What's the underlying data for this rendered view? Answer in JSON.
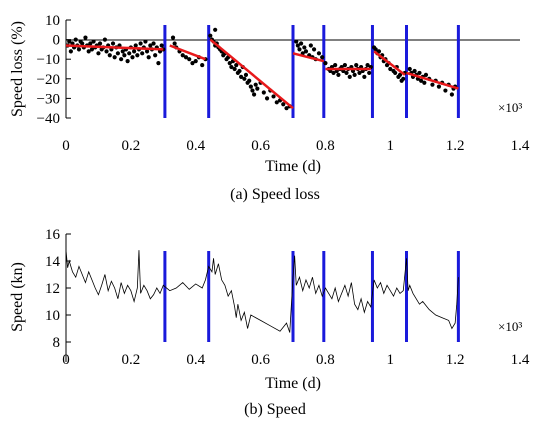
{
  "chart_data": [
    {
      "type": "scatter",
      "caption": "(a) Speed loss",
      "xlabel": "Time (d)",
      "ylabel": "Speed loss (%)",
      "x_multiplier": "×10³",
      "xlim": [
        0,
        1.4
      ],
      "ylim": [
        -40,
        10
      ],
      "xticks": [
        0,
        0.2,
        0.4,
        0.6,
        0.8,
        1.0,
        1.2,
        1.4
      ],
      "xtick_labels": [
        "0",
        "0.2",
        "0.4",
        "0.6",
        "0.8",
        "1",
        "1.2",
        "1.4"
      ],
      "yticks": [
        10,
        0,
        -10,
        -20,
        -30,
        -40
      ],
      "ytick_labels": [
        "10",
        "0",
        "−10",
        "−20",
        "−30",
        "−40"
      ],
      "scatter_color": "#000000",
      "trend_color": "#e8191b",
      "divider_color": "#1a1adb",
      "dividers": [
        0.305,
        0.44,
        0.7,
        0.795,
        0.945,
        1.05,
        1.21
      ],
      "points": [
        [
          0.005,
          -3
        ],
        [
          0.01,
          -1
        ],
        [
          0.015,
          -6
        ],
        [
          0.02,
          -2
        ],
        [
          0.025,
          -4
        ],
        [
          0.03,
          0
        ],
        [
          0.035,
          -3
        ],
        [
          0.04,
          -5
        ],
        [
          0.045,
          -1
        ],
        [
          0.05,
          -2
        ],
        [
          0.055,
          -4
        ],
        [
          0.06,
          1
        ],
        [
          0.065,
          -3
        ],
        [
          0.07,
          -6
        ],
        [
          0.075,
          -2
        ],
        [
          0.08,
          -5
        ],
        [
          0.085,
          -1
        ],
        [
          0.09,
          -4
        ],
        [
          0.095,
          -3
        ],
        [
          0.1,
          -7
        ],
        [
          0.105,
          -2
        ],
        [
          0.11,
          -5
        ],
        [
          0.115,
          -4
        ],
        [
          0.12,
          0
        ],
        [
          0.125,
          -6
        ],
        [
          0.13,
          -3
        ],
        [
          0.135,
          -8
        ],
        [
          0.14,
          -5
        ],
        [
          0.145,
          -2
        ],
        [
          0.15,
          -9
        ],
        [
          0.155,
          -4
        ],
        [
          0.16,
          -7
        ],
        [
          0.165,
          -3
        ],
        [
          0.17,
          -10
        ],
        [
          0.175,
          -6
        ],
        [
          0.18,
          -8
        ],
        [
          0.185,
          -5
        ],
        [
          0.19,
          -11
        ],
        [
          0.195,
          -7
        ],
        [
          0.2,
          -4
        ],
        [
          0.205,
          -9
        ],
        [
          0.21,
          -6
        ],
        [
          0.215,
          -3
        ],
        [
          0.22,
          -8
        ],
        [
          0.225,
          -5
        ],
        [
          0.23,
          -2
        ],
        [
          0.235,
          -7
        ],
        [
          0.24,
          -4
        ],
        [
          0.245,
          -1
        ],
        [
          0.25,
          -6
        ],
        [
          0.255,
          -9
        ],
        [
          0.26,
          -3
        ],
        [
          0.265,
          -5
        ],
        [
          0.27,
          -2
        ],
        [
          0.275,
          -8
        ],
        [
          0.28,
          -4
        ],
        [
          0.285,
          -12
        ],
        [
          0.29,
          -6
        ],
        [
          0.295,
          -3
        ],
        [
          0.3,
          -5
        ],
        [
          0.33,
          1
        ],
        [
          0.335,
          -2
        ],
        [
          0.34,
          -4
        ],
        [
          0.35,
          -6
        ],
        [
          0.36,
          -8
        ],
        [
          0.37,
          -9
        ],
        [
          0.38,
          -10
        ],
        [
          0.39,
          -12
        ],
        [
          0.4,
          -11
        ],
        [
          0.41,
          -9
        ],
        [
          0.42,
          -13
        ],
        [
          0.43,
          -10
        ],
        [
          0.445,
          2
        ],
        [
          0.45,
          0
        ],
        [
          0.455,
          -1
        ],
        [
          0.46,
          -3
        ],
        [
          0.465,
          -2
        ],
        [
          0.47,
          -4
        ],
        [
          0.475,
          -5
        ],
        [
          0.48,
          -6
        ],
        [
          0.485,
          -8
        ],
        [
          0.49,
          -7
        ],
        [
          0.495,
          -10
        ],
        [
          0.5,
          -9
        ],
        [
          0.505,
          -12
        ],
        [
          0.51,
          -14
        ],
        [
          0.515,
          -11
        ],
        [
          0.52,
          -15
        ],
        [
          0.525,
          -13
        ],
        [
          0.53,
          -17
        ],
        [
          0.535,
          -16
        ],
        [
          0.54,
          -19
        ],
        [
          0.545,
          -14
        ],
        [
          0.55,
          -20
        ],
        [
          0.555,
          -18
        ],
        [
          0.56,
          -22
        ],
        [
          0.565,
          -21
        ],
        [
          0.57,
          -24
        ],
        [
          0.575,
          -26
        ],
        [
          0.58,
          -28
        ],
        [
          0.585,
          -23
        ],
        [
          0.59,
          -25
        ],
        [
          0.6,
          -22
        ],
        [
          0.61,
          -27
        ],
        [
          0.62,
          -30
        ],
        [
          0.63,
          -26
        ],
        [
          0.64,
          -29
        ],
        [
          0.65,
          -32
        ],
        [
          0.66,
          -31
        ],
        [
          0.67,
          -33
        ],
        [
          0.68,
          -35
        ],
        [
          0.69,
          -34
        ],
        [
          0.46,
          5
        ],
        [
          0.71,
          -1
        ],
        [
          0.715,
          -3
        ],
        [
          0.72,
          -5
        ],
        [
          0.725,
          -2
        ],
        [
          0.73,
          -7
        ],
        [
          0.735,
          -4
        ],
        [
          0.74,
          -6
        ],
        [
          0.75,
          -8
        ],
        [
          0.755,
          -3
        ],
        [
          0.76,
          -9
        ],
        [
          0.765,
          -5
        ],
        [
          0.77,
          -10
        ],
        [
          0.78,
          -7
        ],
        [
          0.79,
          -9
        ],
        [
          0.8,
          -12
        ],
        [
          0.81,
          -15
        ],
        [
          0.815,
          -16
        ],
        [
          0.82,
          -14
        ],
        [
          0.825,
          -17
        ],
        [
          0.83,
          -13
        ],
        [
          0.835,
          -16
        ],
        [
          0.84,
          -18
        ],
        [
          0.845,
          -15
        ],
        [
          0.85,
          -14
        ],
        [
          0.855,
          -16
        ],
        [
          0.86,
          -13
        ],
        [
          0.865,
          -17
        ],
        [
          0.87,
          -15
        ],
        [
          0.875,
          -19
        ],
        [
          0.88,
          -14
        ],
        [
          0.885,
          -16
        ],
        [
          0.89,
          -18
        ],
        [
          0.895,
          -13
        ],
        [
          0.9,
          -15
        ],
        [
          0.905,
          -17
        ],
        [
          0.91,
          -14
        ],
        [
          0.915,
          -16
        ],
        [
          0.92,
          -19
        ],
        [
          0.925,
          -15
        ],
        [
          0.93,
          -13
        ],
        [
          0.935,
          -17
        ],
        [
          0.94,
          -14
        ],
        [
          0.95,
          -4
        ],
        [
          0.955,
          -5
        ],
        [
          0.96,
          -7
        ],
        [
          0.965,
          -6
        ],
        [
          0.97,
          -9
        ],
        [
          0.975,
          -8
        ],
        [
          0.98,
          -11
        ],
        [
          0.985,
          -10
        ],
        [
          0.99,
          -13
        ],
        [
          0.995,
          -12
        ],
        [
          1.0,
          -15
        ],
        [
          1.01,
          -16
        ],
        [
          1.015,
          -17
        ],
        [
          1.02,
          -14
        ],
        [
          1.025,
          -19
        ],
        [
          1.03,
          -18
        ],
        [
          1.035,
          -21
        ],
        [
          1.04,
          -20
        ],
        [
          1.045,
          -17
        ],
        [
          1.06,
          -15
        ],
        [
          1.065,
          -17
        ],
        [
          1.07,
          -19
        ],
        [
          1.075,
          -16
        ],
        [
          1.08,
          -18
        ],
        [
          1.085,
          -20
        ],
        [
          1.09,
          -17
        ],
        [
          1.095,
          -21
        ],
        [
          1.1,
          -19
        ],
        [
          1.105,
          -22
        ],
        [
          1.11,
          -18
        ],
        [
          1.12,
          -20
        ],
        [
          1.13,
          -23
        ],
        [
          1.14,
          -21
        ],
        [
          1.15,
          -24
        ],
        [
          1.16,
          -22
        ],
        [
          1.17,
          -26
        ],
        [
          1.18,
          -23
        ],
        [
          1.19,
          -28
        ],
        [
          1.195,
          -25
        ],
        [
          1.2,
          -24
        ]
      ],
      "trend_segments": [
        [
          [
            0.0,
            -3
          ],
          [
            0.3,
            -5
          ]
        ],
        [
          [
            0.32,
            -3
          ],
          [
            0.43,
            -10
          ]
        ],
        [
          [
            0.445,
            0
          ],
          [
            0.7,
            -35
          ]
        ],
        [
          [
            0.7,
            -7
          ],
          [
            0.795,
            -11
          ]
        ],
        [
          [
            0.8,
            -15
          ],
          [
            0.94,
            -15
          ]
        ],
        [
          [
            0.95,
            -6
          ],
          [
            1.045,
            -18
          ]
        ],
        [
          [
            1.05,
            -17
          ],
          [
            1.21,
            -25
          ]
        ]
      ]
    },
    {
      "type": "line",
      "caption": "(b) Speed",
      "xlabel": "Time (d)",
      "ylabel": "Speed (kn)",
      "x_multiplier": "×10³",
      "xlim": [
        0,
        1.4
      ],
      "ylim": [
        8,
        16
      ],
      "xticks": [
        0,
        0.2,
        0.4,
        0.6,
        0.8,
        1.0,
        1.2,
        1.4
      ],
      "xtick_labels": [
        "0",
        "0.2",
        "0.4",
        "0.6",
        "0.8",
        "1",
        "1.2",
        "1.4"
      ],
      "yticks": [
        16,
        14,
        12,
        10,
        8
      ],
      "ytick_labels": [
        "16",
        "14",
        "12",
        "10",
        "8"
      ],
      "line_color": "#000000",
      "divider_color": "#1a1adb",
      "dividers": [
        0.305,
        0.44,
        0.7,
        0.795,
        0.945,
        1.05,
        1.21
      ],
      "x": [
        0.0,
        0.005,
        0.01,
        0.02,
        0.03,
        0.04,
        0.05,
        0.06,
        0.07,
        0.08,
        0.09,
        0.1,
        0.11,
        0.12,
        0.13,
        0.14,
        0.15,
        0.16,
        0.17,
        0.18,
        0.19,
        0.2,
        0.21,
        0.22,
        0.225,
        0.23,
        0.24,
        0.25,
        0.26,
        0.27,
        0.28,
        0.29,
        0.3,
        0.32,
        0.34,
        0.36,
        0.38,
        0.4,
        0.42,
        0.43,
        0.44,
        0.45,
        0.455,
        0.46,
        0.47,
        0.48,
        0.49,
        0.5,
        0.51,
        0.52,
        0.525,
        0.53,
        0.54,
        0.55,
        0.56,
        0.57,
        0.6,
        0.63,
        0.66,
        0.68,
        0.69,
        0.7,
        0.705,
        0.71,
        0.72,
        0.73,
        0.74,
        0.75,
        0.76,
        0.77,
        0.78,
        0.79,
        0.8,
        0.81,
        0.82,
        0.83,
        0.84,
        0.85,
        0.86,
        0.87,
        0.88,
        0.89,
        0.9,
        0.91,
        0.92,
        0.93,
        0.94,
        0.95,
        0.96,
        0.97,
        0.98,
        0.99,
        1.0,
        1.01,
        1.02,
        1.03,
        1.04,
        1.05,
        1.055,
        1.06,
        1.07,
        1.08,
        1.09,
        1.1,
        1.12,
        1.14,
        1.16,
        1.18,
        1.19,
        1.2,
        1.205,
        1.21
      ],
      "y": [
        14.8,
        13.5,
        14.0,
        13.2,
        12.8,
        13.6,
        13.0,
        12.4,
        13.2,
        12.6,
        12.0,
        11.5,
        12.2,
        13.0,
        11.8,
        12.5,
        12.0,
        11.2,
        12.4,
        11.6,
        12.2,
        11.8,
        11.0,
        12.0,
        14.8,
        11.6,
        12.2,
        11.8,
        11.2,
        11.5,
        12.0,
        11.6,
        12.2,
        11.8,
        12.0,
        12.4,
        11.9,
        12.3,
        12.0,
        12.6,
        13.6,
        13.2,
        14.2,
        13.0,
        13.8,
        12.6,
        12.2,
        11.4,
        11.8,
        10.6,
        9.8,
        10.8,
        9.6,
        10.2,
        9.0,
        10.0,
        9.6,
        9.2,
        8.8,
        9.4,
        8.7,
        12.8,
        14.4,
        12.2,
        12.8,
        11.8,
        12.6,
        12.0,
        12.8,
        11.6,
        12.2,
        11.4,
        12.0,
        11.6,
        11.2,
        12.0,
        11.0,
        11.6,
        12.2,
        11.4,
        12.4,
        10.8,
        10.4,
        11.2,
        10.2,
        11.0,
        10.6,
        12.6,
        12.0,
        12.4,
        11.6,
        12.2,
        11.8,
        11.4,
        12.0,
        11.6,
        11.8,
        14.2,
        11.8,
        12.2,
        11.6,
        11.2,
        10.8,
        11.0,
        10.4,
        10.0,
        9.8,
        9.6,
        9.0,
        9.4,
        10.8,
        12.8
      ]
    }
  ]
}
